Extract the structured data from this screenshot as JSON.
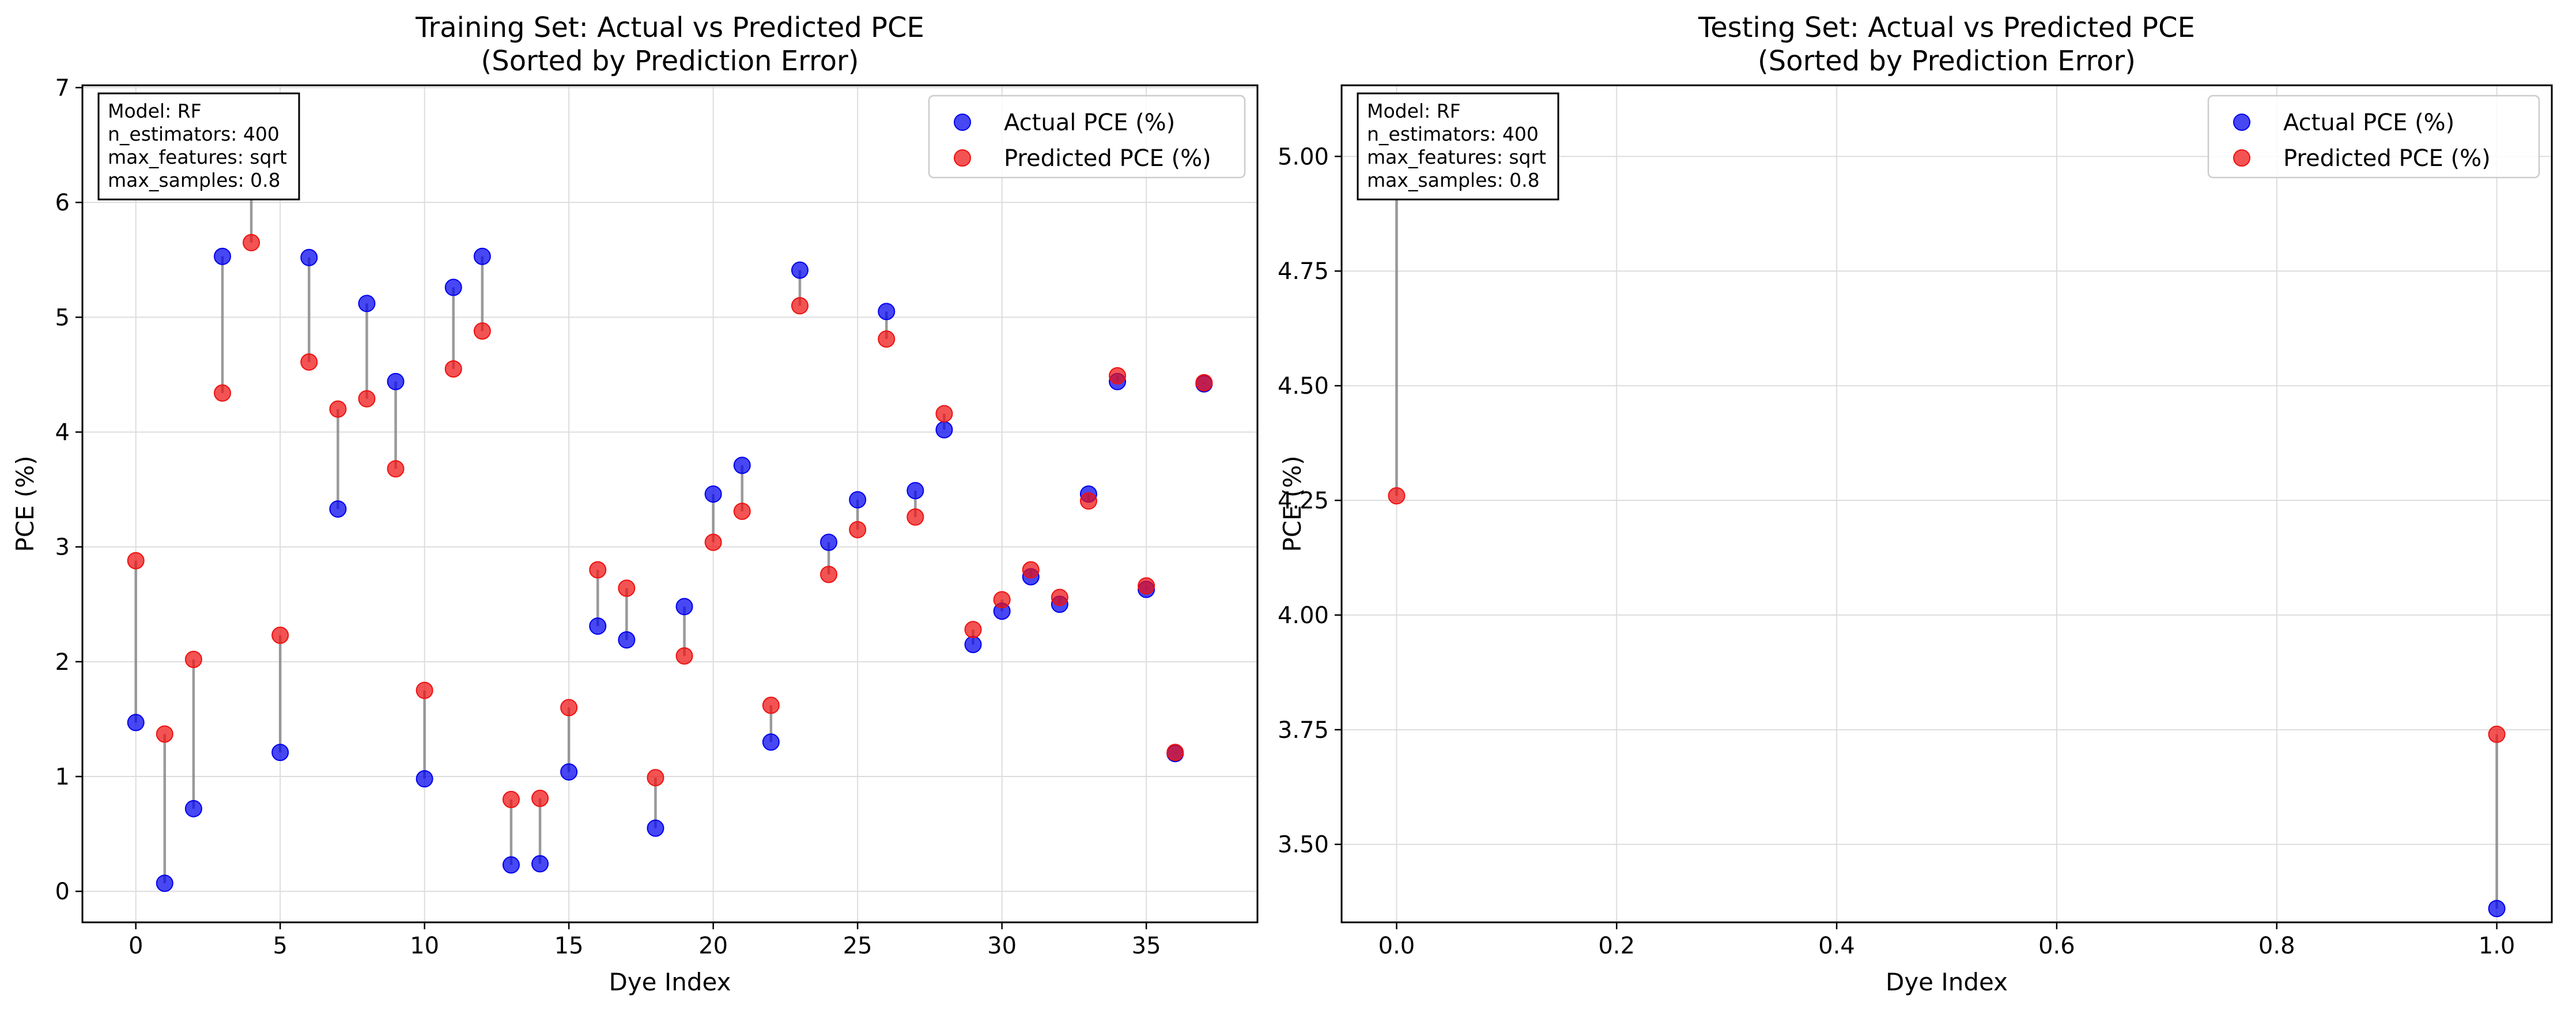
{
  "colors": {
    "actual": "#0000ee",
    "predicted": "#ee1111",
    "connector": "#888888",
    "grid": "#dddddd"
  },
  "chart_data": [
    {
      "type": "scatter",
      "title": "Training Set: Actual vs Predicted PCE",
      "subtitle": "(Sorted by Prediction Error)",
      "xlabel": "Dye Index",
      "ylabel": "PCE (%)",
      "xlim": [
        -1.85,
        38.85
      ],
      "ylim": [
        -0.27,
        7.02
      ],
      "xticks": [
        0,
        5,
        10,
        15,
        20,
        25,
        30,
        35
      ],
      "yticks": [
        0,
        1,
        2,
        3,
        4,
        5,
        6,
        7
      ],
      "grid": true,
      "legend_position": "top-right",
      "annotation": [
        "Model: RF",
        "n_estimators: 400",
        "max_features: sqrt",
        "max_samples: 0.8"
      ],
      "series": [
        {
          "name": "Actual PCE (%)",
          "color_key": "actual",
          "x": [
            0,
            1,
            2,
            3,
            4,
            5,
            6,
            7,
            8,
            9,
            10,
            11,
            12,
            13,
            14,
            15,
            16,
            17,
            18,
            19,
            20,
            21,
            22,
            23,
            24,
            25,
            26,
            27,
            28,
            29,
            30,
            31,
            32,
            33,
            34,
            35,
            36,
            37
          ],
          "y": [
            1.47,
            0.07,
            0.72,
            5.53,
            6.72,
            1.21,
            5.52,
            3.33,
            5.12,
            4.44,
            0.98,
            5.26,
            5.53,
            0.23,
            0.24,
            1.04,
            2.31,
            2.19,
            0.55,
            2.48,
            3.46,
            3.71,
            1.3,
            5.41,
            3.04,
            3.41,
            5.05,
            3.49,
            4.02,
            2.15,
            2.44,
            2.74,
            2.5,
            3.46,
            4.44,
            2.63,
            1.2,
            4.42
          ]
        },
        {
          "name": "Predicted PCE (%)",
          "color_key": "predicted",
          "x": [
            0,
            1,
            2,
            3,
            4,
            5,
            6,
            7,
            8,
            9,
            10,
            11,
            12,
            13,
            14,
            15,
            16,
            17,
            18,
            19,
            20,
            21,
            22,
            23,
            24,
            25,
            26,
            27,
            28,
            29,
            30,
            31,
            32,
            33,
            34,
            35,
            36,
            37
          ],
          "y": [
            2.88,
            1.37,
            2.02,
            4.34,
            5.65,
            2.23,
            4.61,
            4.2,
            4.29,
            3.68,
            1.75,
            4.55,
            4.88,
            0.8,
            0.81,
            1.6,
            2.8,
            2.64,
            0.99,
            2.05,
            3.04,
            3.31,
            1.62,
            5.1,
            2.76,
            3.15,
            4.81,
            3.26,
            4.16,
            2.28,
            2.54,
            2.8,
            2.56,
            3.4,
            4.49,
            2.66,
            1.21,
            4.43
          ]
        }
      ]
    },
    {
      "type": "scatter",
      "title": "Testing Set: Actual vs Predicted PCE",
      "subtitle": "(Sorted by Prediction Error)",
      "xlabel": "Dye Index",
      "ylabel": "PCE (%)",
      "xlim": [
        -0.05,
        1.05
      ],
      "ylim": [
        3.33,
        5.155
      ],
      "xticks": [
        0.0,
        0.2,
        0.4,
        0.6,
        0.8,
        1.0
      ],
      "xtick_labels": [
        "0.0",
        "0.2",
        "0.4",
        "0.6",
        "0.8",
        "1.0"
      ],
      "yticks": [
        3.5,
        3.75,
        4.0,
        4.25,
        4.5,
        4.75,
        5.0
      ],
      "ytick_labels": [
        "3.50",
        "3.75",
        "4.00",
        "4.25",
        "4.50",
        "4.75",
        "5.00"
      ],
      "grid": true,
      "legend_position": "top-right",
      "annotation": [
        "Model: RF",
        "n_estimators: 400",
        "max_features: sqrt",
        "max_samples: 0.8"
      ],
      "series": [
        {
          "name": "Actual PCE (%)",
          "color_key": "actual",
          "x": [
            0,
            1
          ],
          "y": [
            5.08,
            3.36
          ]
        },
        {
          "name": "Predicted PCE (%)",
          "color_key": "predicted",
          "x": [
            0,
            1
          ],
          "y": [
            4.26,
            3.74
          ]
        }
      ]
    }
  ]
}
